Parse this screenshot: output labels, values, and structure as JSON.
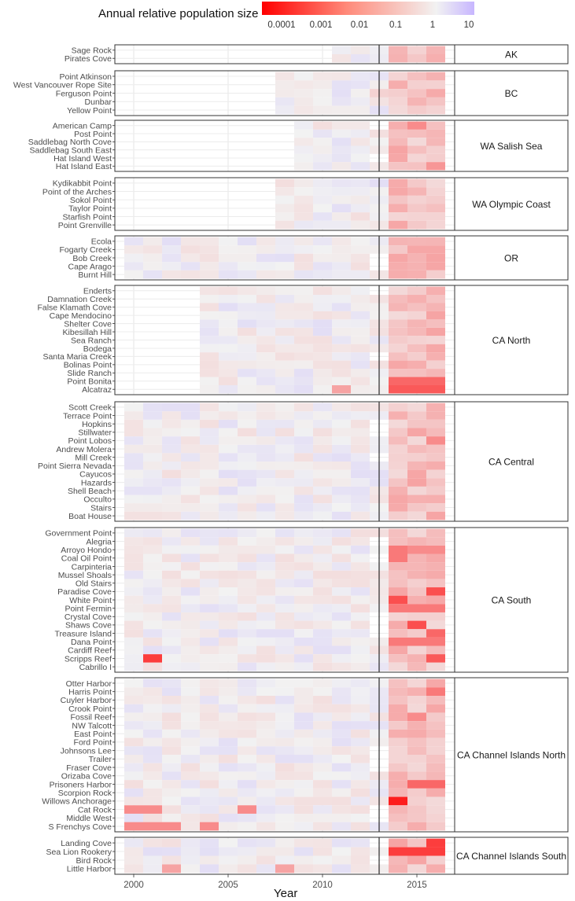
{
  "legend": {
    "title": "Annual relative population size",
    "ticks": [
      "0.0001",
      "0.001",
      "0.01",
      "0.1",
      "1",
      "10"
    ]
  },
  "chart_data": {
    "type": "heatmap",
    "xlabel": "Year",
    "x_ticks": [
      2000,
      2005,
      2010,
      2015
    ],
    "x_range": [
      1999,
      2017
    ],
    "vertical_line_year": 2013,
    "colorscale": {
      "low": "#ff0000",
      "mid": "#f2f2f2",
      "high": "#b9a6ff",
      "scale": "log10",
      "range": [
        0.0001,
        10
      ]
    },
    "regions": [
      {
        "name": "AK",
        "sites": [
          "Sage Rock",
          "Pirates Cove"
        ],
        "start": 2011,
        "hot": [
          {
            "site": "Sage Rock",
            "values": {
              "2015": 0.3
            }
          }
        ]
      },
      {
        "name": "BC",
        "sites": [
          "Point Atkinson",
          "West Vancouver Rope Site",
          "Ferguson Point",
          "Dunbar",
          "Yellow Point"
        ],
        "start": 2008,
        "hot": [
          {
            "site": "Ferguson Point",
            "values": {
              "2013": 0.3
            }
          }
        ]
      },
      {
        "name": "WA Salish Sea",
        "sites": [
          "American Camp",
          "Post Point",
          "Saddlebag North Cove",
          "Saddlebag South East",
          "Hat Island West",
          "Hat Island East"
        ],
        "start": 2009,
        "hot": [
          {
            "site": "American Camp",
            "values": {
              "2015": 0.02
            }
          },
          {
            "site": "Hat Island East",
            "values": {
              "2016": 0.03
            }
          }
        ]
      },
      {
        "name": "WA Olympic Coast",
        "sites": [
          "Kydikabbit Point",
          "Point of the Arches",
          "Sokol Point",
          "Taylor Point",
          "Starfish Point",
          "Point Grenville"
        ],
        "start": 2008,
        "hot": [
          {
            "site": "Sokol Point",
            "values": {
              "2015": 0.3
            }
          }
        ]
      },
      {
        "name": "OR",
        "sites": [
          "Ecola",
          "Fogarty Creek",
          "Bob Creek",
          "Cape Arago",
          "Burnt Hill"
        ],
        "start": 2000,
        "hot": [
          {
            "site": "Ecola",
            "values": {
              "2015": 0.1
            }
          }
        ]
      },
      {
        "name": "CA North",
        "sites": [
          "Enderts",
          "Damnation Creek",
          "False Klamath Cove",
          "Cape Mendocino",
          "Shelter Cove",
          "Kibesillah Hill",
          "Sea Ranch",
          "Bodega",
          "Santa Maria Creek",
          "Bolinas Point",
          "Slide Ranch",
          "Point Bonita",
          "Alcatraz"
        ],
        "start": 2004,
        "hot": [
          {
            "site": "Point Bonita",
            "values": {
              "2014": 0.005,
              "2015": 0.005,
              "2016": 0.005
            }
          },
          {
            "site": "Alcatraz",
            "values": {
              "2011": 0.05,
              "2014": 0.003,
              "2015": 0.003,
              "2016": 0.003
            }
          }
        ]
      },
      {
        "name": "CA Central",
        "sites": [
          "Scott Creek",
          "Terrace Point",
          "Hopkins",
          "Stillwater",
          "Point Lobos",
          "Andrew Molera",
          "Mill Creek",
          "Point Sierra Nevada",
          "Cayucos",
          "Hazards",
          "Shell Beach",
          "Occulto",
          "Stairs",
          "Boat House"
        ],
        "start": 2000,
        "hot": [
          {
            "site": "Point Lobos",
            "values": {
              "2016": 0.02
            }
          },
          {
            "site": "Hazards",
            "values": {
              "2015": 0.05
            }
          }
        ]
      },
      {
        "name": "CA South",
        "sites": [
          "Government Point",
          "Alegria",
          "Arroyo Hondo",
          "Coal Oil Point",
          "Carpinteria",
          "Mussel Shoals",
          "Old Stairs",
          "Paradise Cove",
          "White Point",
          "Point Fermin",
          "Crystal Cove",
          "Shaws Cove",
          "Treasure Island",
          "Dana Point",
          "Cardiff Reef",
          "Scripps Reef",
          "Cabrillo I"
        ],
        "start": 2000,
        "hot": [
          {
            "site": "Arroyo Hondo",
            "values": {
              "2014": 0.01,
              "2015": 0.02,
              "2016": 0.02
            }
          },
          {
            "site": "Coal Oil Point",
            "values": {
              "2014": 0.01
            }
          },
          {
            "site": "Paradise Cove",
            "values": {
              "2016": 0.002
            }
          },
          {
            "site": "White Point",
            "values": {
              "2014": 0.002
            }
          },
          {
            "site": "Point Fermin",
            "values": {
              "2014": 0.01,
              "2015": 0.01,
              "2016": 0.01
            }
          },
          {
            "site": "Shaws Cove",
            "values": {
              "2015": 0.002
            }
          },
          {
            "site": "Treasure Island",
            "values": {
              "2016": 0.005
            }
          },
          {
            "site": "Dana Point",
            "values": {
              "2014": 0.01,
              "2015": 0.01,
              "2016": 0.01
            }
          },
          {
            "site": "Scripps Reef",
            "values": {
              "2001": 0.001,
              "2016": 0.003
            }
          }
        ]
      },
      {
        "name": "CA Channel Islands North",
        "sites": [
          "Otter Harbor",
          "Harris Point",
          "Cuyler Harbor",
          "Crook Point",
          "Fossil Reef",
          "NW Talcott",
          "East Point",
          "Ford Point",
          "Johnsons Lee",
          "Trailer",
          "Fraser Cove",
          "Orizaba Cove",
          "Prisoners Harbor",
          "Scorpion Rock",
          "Willows Anchorage",
          "Cat Rock",
          "Middle West",
          "S Frenchys Cove"
        ],
        "start": 2000,
        "hot": [
          {
            "site": "Harris Point",
            "values": {
              "2016": 0.01
            }
          },
          {
            "site": "Fossil Reef",
            "values": {
              "2015": 0.02
            }
          },
          {
            "site": "Prisoners Harbor",
            "values": {
              "2015": 0.005,
              "2016": 0.005
            }
          },
          {
            "site": "Willows Anchorage",
            "values": {
              "2014": 0.0003
            }
          },
          {
            "site": "Cat Rock",
            "values": {
              "2000": 0.02,
              "2001": 0.02,
              "2006": 0.02
            }
          },
          {
            "site": "S Frenchys Cove",
            "values": {
              "2000": 0.02,
              "2001": 0.02,
              "2002": 0.02,
              "2004": 0.02
            }
          }
        ]
      },
      {
        "name": "CA Channel Islands South",
        "sites": [
          "Landing Cove",
          "Sea Lion Rookery",
          "Bird Rock",
          "Little Harbor"
        ],
        "start": 2000,
        "hot": [
          {
            "site": "Sea Lion Rookery",
            "values": {
              "2014": 0.001,
              "2015": 0.001,
              "2016": 0.001
            }
          },
          {
            "site": "Landing Cove",
            "values": {
              "2016": 0.001
            }
          },
          {
            "site": "Little Harbor",
            "values": {
              "2002": 0.05,
              "2008": 0.05
            }
          }
        ]
      }
    ]
  }
}
